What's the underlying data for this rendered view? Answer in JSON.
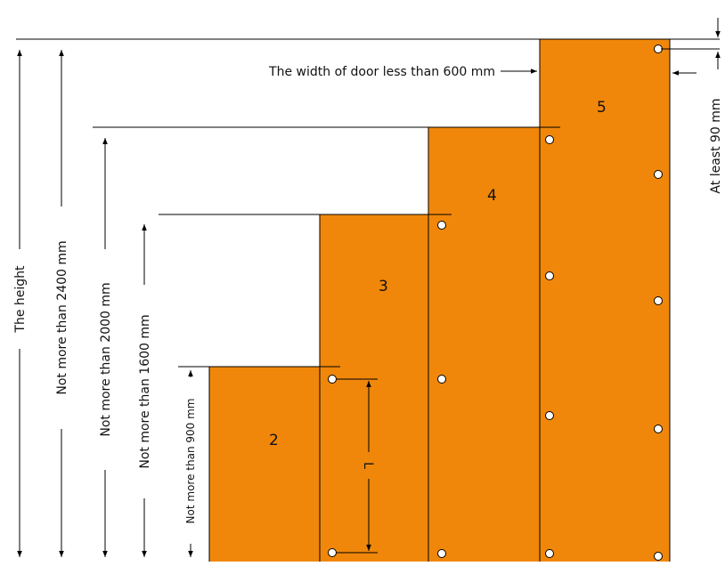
{
  "colors": {
    "door": "#F0870A",
    "line": "#000000",
    "hole_fill": "#ffffff"
  },
  "doors": [
    {
      "id": "door-2",
      "label": "2",
      "holes": 2
    },
    {
      "id": "door-3",
      "label": "3",
      "holes": 3
    },
    {
      "id": "door-4",
      "label": "4",
      "holes": 4
    },
    {
      "id": "door-5",
      "label": "5",
      "holes": 5
    }
  ],
  "labels": {
    "the_height": "The height",
    "max_2400": "Not more than 2400 mm",
    "max_2000": "Not more than 2000 mm",
    "max_1600": "Not more than 1600 mm",
    "max_900": "Not more than 900 mm",
    "door_width": "The width of door less than 600 mm",
    "at_least_90": "At least 90 mm",
    "hole_spacing": "L"
  }
}
